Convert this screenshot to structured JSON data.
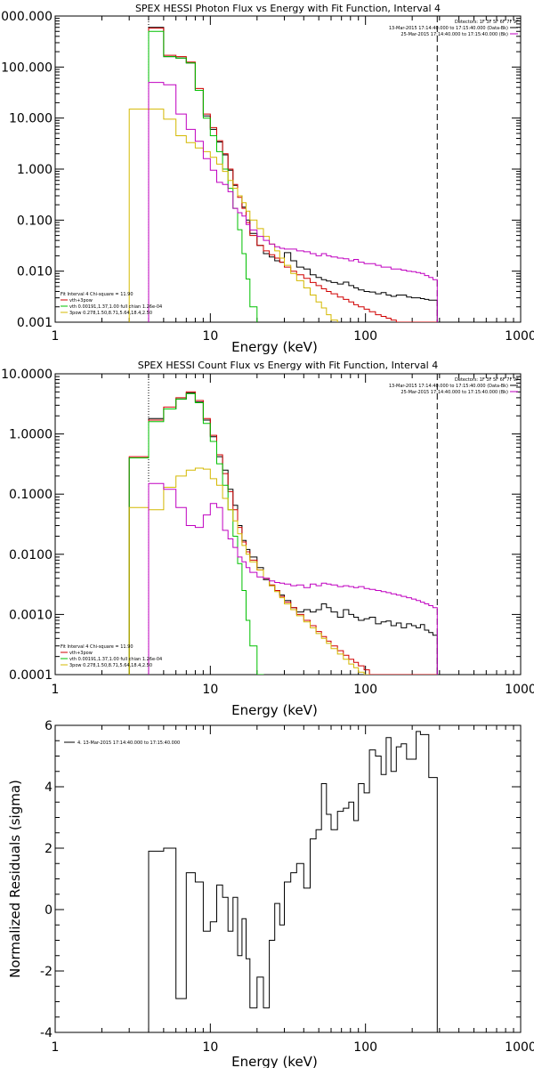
{
  "chart_data": [
    {
      "type": "line",
      "title": "SPEX HESSI Photon Flux vs Energy with Fit Function, Interval 4",
      "xlabel": "Energy (keV)",
      "ylabel": "",
      "xscale": "log",
      "yscale": "log",
      "xlim": [
        1,
        1000
      ],
      "ylim": [
        0.001,
        1000
      ],
      "xticks": [
        "1",
        "10",
        "100",
        "1000"
      ],
      "yticks": [
        "0.001",
        "0.010",
        "0.100",
        "1.000",
        "10.000",
        "100.000",
        "1000.000"
      ],
      "vline_dotted": 4,
      "vline_dashed": 290,
      "legend_right": [
        "Detectors: 1F 3F 5F 6F 7F 9F",
        "13-Mar-2015 17:14:40.000 to 17:15:40.000 (Data-Bk)",
        "25-Mar-2015 17:14:40.000 to 17:15:40.000 (Bk)"
      ],
      "legend_left": [
        "Fit Interval 4   Chi-square = 11.90",
        "vth+3pow",
        "vth 0.00191,1.37,1.00  full chian 1.26e-04",
        "3pow 0.278,1.50,8.71,5.64,18.4,2.50"
      ],
      "edges": [
        3.0,
        4.0,
        5.0,
        6.0,
        7.0,
        8.0,
        9.0,
        10.0,
        11.0,
        12.0,
        13.0,
        14.0,
        15.0,
        16.0,
        17.0,
        18.0,
        20.0,
        22.0,
        24.0,
        26.0,
        28.0,
        30.0,
        33.0,
        36.0,
        40.0,
        44.0,
        48.0,
        52.0,
        56.0,
        60.0,
        66.0,
        72.0,
        78.0,
        84.0,
        90.0,
        98.0,
        106.0,
        116.0,
        126.0,
        136.0,
        146.0,
        158.0,
        170.0,
        184.0,
        198.0,
        212.0,
        226.0,
        240.0,
        256.0,
        272.0,
        290.0
      ],
      "series": [
        {
          "name": "Data-Bk",
          "color": "#000000",
          "values": [
            null,
            600,
            160,
            150,
            120,
            35,
            11,
            6.0,
            3.4,
            1.9,
            0.95,
            0.48,
            0.3,
            0.18,
            0.1,
            0.055,
            0.032,
            0.022,
            0.019,
            0.016,
            0.015,
            0.023,
            0.016,
            0.012,
            0.011,
            0.0085,
            0.0075,
            0.0068,
            0.0064,
            0.006,
            0.0056,
            0.0061,
            0.0052,
            0.0047,
            0.0043,
            0.004,
            0.0039,
            0.0036,
            0.0038,
            0.0034,
            0.0032,
            0.0034,
            0.0034,
            0.0031,
            0.003,
            0.003,
            0.0029,
            0.0028,
            0.0027,
            0.0027
          ]
        },
        {
          "name": "vth+3pow",
          "color": "#d00000",
          "values": [
            null,
            580,
            170,
            160,
            125,
            38,
            12,
            6.5,
            3.6,
            2.0,
            1.0,
            0.5,
            0.28,
            0.17,
            0.09,
            0.05,
            0.032,
            0.025,
            0.021,
            0.018,
            0.015,
            0.012,
            0.01,
            0.0085,
            0.0072,
            0.006,
            0.0052,
            0.0045,
            0.004,
            0.0036,
            0.0031,
            0.0028,
            0.0025,
            0.0022,
            0.002,
            0.0018,
            0.0016,
            0.0014,
            0.0013,
            0.0012,
            0.0011,
            0.001,
            0.001,
            0.001,
            0.001,
            0.001,
            0.001,
            0.001,
            0.001,
            0.001
          ]
        },
        {
          "name": "vth",
          "color": "#00c000",
          "values": [
            null,
            500,
            160,
            150,
            120,
            35,
            10,
            4.5,
            2.2,
            1.0,
            0.42,
            0.17,
            0.065,
            0.022,
            0.007,
            0.002,
            0.0006,
            null,
            null,
            null,
            null,
            null,
            null,
            null,
            null,
            null,
            null,
            null,
            null,
            null,
            null,
            null,
            null,
            null,
            null,
            null,
            null,
            null,
            null,
            null,
            null,
            null,
            null,
            null,
            null,
            null,
            null,
            null,
            null,
            null
          ]
        },
        {
          "name": "3pow",
          "color": "#d4b800",
          "values": [
            15,
            15,
            9.5,
            4.5,
            3.3,
            2.6,
            2.2,
            1.7,
            1.25,
            0.9,
            0.6,
            0.42,
            0.3,
            0.22,
            0.15,
            0.1,
            0.068,
            0.048,
            0.034,
            0.025,
            0.018,
            0.013,
            0.009,
            0.0065,
            0.0047,
            0.0034,
            0.0025,
            0.0019,
            0.0014,
            0.0011,
            0.0008,
            null,
            null,
            null,
            null,
            null,
            null,
            null,
            null,
            null,
            null,
            null,
            null,
            null,
            null,
            null,
            null,
            null,
            null,
            null
          ]
        },
        {
          "name": "Bk",
          "color": "#c000c0",
          "values": [
            null,
            50,
            45,
            12,
            6.0,
            3.5,
            1.6,
            0.95,
            0.55,
            0.5,
            0.36,
            0.17,
            0.14,
            0.12,
            0.082,
            0.064,
            0.048,
            0.04,
            0.034,
            0.03,
            0.028,
            0.027,
            0.027,
            0.025,
            0.024,
            0.022,
            0.02,
            0.022,
            0.02,
            0.019,
            0.018,
            0.0175,
            0.016,
            0.017,
            0.015,
            0.014,
            0.014,
            0.013,
            0.012,
            0.012,
            0.011,
            0.011,
            0.0105,
            0.01,
            0.0098,
            0.0094,
            0.009,
            0.0082,
            0.0075,
            0.0068
          ]
        }
      ]
    },
    {
      "type": "line",
      "title": "SPEX HESSI Count Flux vs Energy with Fit Function, Interval 4",
      "xlabel": "Energy (keV)",
      "ylabel": "",
      "xscale": "log",
      "yscale": "log",
      "xlim": [
        1,
        1000
      ],
      "ylim": [
        0.0001,
        10
      ],
      "xticks": [
        "1",
        "10",
        "100",
        "1000"
      ],
      "yticks": [
        "0.0001",
        "0.0010",
        "0.0100",
        "0.1000",
        "1.0000",
        "10.0000"
      ],
      "vline_dotted": 4,
      "vline_dashed": 290,
      "legend_right": [
        "Detectors: 1F 3F 5F 6F 7F 9F",
        "13-Mar-2015 17:14:40.000 to 17:15:40.000 (Data-Bk)",
        "25-Mar-2015 17:14:40.000 to 17:15:40.000 (Bk)"
      ],
      "legend_left": [
        "Fit Interval 4   Chi-square = 11.90",
        "vth+3pow",
        "vth 0.00191,1.37,1.00  full chian 1.26e-04",
        "3pow 0.278,1.50,8.71,5.64,18.4,2.50"
      ],
      "edges": [
        3.0,
        4.0,
        5.0,
        6.0,
        7.0,
        8.0,
        9.0,
        10.0,
        11.0,
        12.0,
        13.0,
        14.0,
        15.0,
        16.0,
        17.0,
        18.0,
        20.0,
        22.0,
        24.0,
        26.0,
        28.0,
        30.0,
        33.0,
        36.0,
        40.0,
        44.0,
        48.0,
        52.0,
        56.0,
        60.0,
        66.0,
        72.0,
        78.0,
        84.0,
        90.0,
        98.0,
        106.0,
        116.0,
        126.0,
        136.0,
        146.0,
        158.0,
        170.0,
        184.0,
        198.0,
        212.0,
        226.0,
        240.0,
        256.0,
        272.0,
        290.0
      ],
      "series": [
        {
          "name": "Data-Bk",
          "color": "#000000",
          "values": [
            0.4,
            1.8,
            2.6,
            3.8,
            4.8,
            3.4,
            1.7,
            0.9,
            0.42,
            0.25,
            0.12,
            0.065,
            0.03,
            0.017,
            0.012,
            0.009,
            0.006,
            0.0038,
            0.003,
            0.0025,
            0.0021,
            0.0017,
            0.0013,
            0.0011,
            0.0012,
            0.0011,
            0.0012,
            0.0015,
            0.0013,
            0.0011,
            0.0009,
            0.0012,
            0.001,
            0.0009,
            0.0008,
            0.00085,
            0.0009,
            0.0007,
            0.00075,
            0.00078,
            0.00065,
            0.00072,
            0.0006,
            0.0007,
            0.00065,
            0.0006,
            0.00068,
            0.00055,
            0.0005,
            0.00045
          ]
        },
        {
          "name": "vth+3pow",
          "color": "#d00000",
          "values": [
            0.42,
            1.7,
            2.8,
            4.0,
            5.0,
            3.6,
            1.8,
            0.95,
            0.45,
            0.22,
            0.11,
            0.055,
            0.028,
            0.016,
            0.011,
            0.008,
            0.0055,
            0.004,
            0.0031,
            0.0025,
            0.002,
            0.0016,
            0.0013,
            0.001,
            0.0008,
            0.00065,
            0.00052,
            0.00043,
            0.00036,
            0.0003,
            0.00025,
            0.00021,
            0.00018,
            0.00016,
            0.00014,
            0.00012,
            0.0001,
            0.0001,
            0.0001,
            0.0001,
            0.0001,
            0.0001,
            0.0001,
            0.0001,
            0.0001,
            0.0001,
            0.0001,
            0.0001,
            0.0001,
            0.0001
          ]
        },
        {
          "name": "vth",
          "color": "#00c000",
          "values": [
            0.4,
            1.6,
            2.6,
            3.8,
            4.7,
            3.3,
            1.5,
            0.75,
            0.32,
            0.14,
            0.055,
            0.02,
            0.007,
            0.0025,
            0.0008,
            0.0003,
            0.0001,
            null,
            null,
            null,
            null,
            null,
            null,
            null,
            null,
            null,
            null,
            null,
            null,
            null,
            null,
            null,
            null,
            null,
            null,
            null,
            null,
            null,
            null,
            null,
            null,
            null,
            null,
            null,
            null,
            null,
            null,
            null,
            null,
            null
          ]
        },
        {
          "name": "3pow",
          "color": "#d4b800",
          "values": [
            0.06,
            0.055,
            0.13,
            0.2,
            0.25,
            0.27,
            0.26,
            0.18,
            0.14,
            0.085,
            0.055,
            0.036,
            0.022,
            0.014,
            0.01,
            0.0075,
            0.0055,
            0.004,
            0.003,
            0.0024,
            0.0019,
            0.0015,
            0.0012,
            0.00095,
            0.00075,
            0.0006,
            0.00048,
            0.0004,
            0.00033,
            0.00027,
            0.00022,
            0.00018,
            0.00015,
            0.00013,
            0.00011,
            0.0001,
            null,
            null,
            null,
            null,
            null,
            null,
            null,
            null,
            null,
            null,
            null,
            null,
            null,
            null
          ]
        },
        {
          "name": "Bk",
          "color": "#c000c0",
          "values": [
            null,
            0.15,
            0.12,
            0.06,
            0.03,
            0.028,
            0.045,
            0.07,
            0.06,
            0.025,
            0.018,
            0.013,
            0.009,
            0.0075,
            0.006,
            0.005,
            0.0042,
            0.004,
            0.0036,
            0.0034,
            0.0033,
            0.0032,
            0.003,
            0.0031,
            0.0028,
            0.0032,
            0.003,
            0.0033,
            0.0032,
            0.0031,
            0.0029,
            0.003,
            0.0029,
            0.0028,
            0.0029,
            0.0027,
            0.0026,
            0.0025,
            0.0024,
            0.0023,
            0.0022,
            0.0021,
            0.002,
            0.0019,
            0.0018,
            0.0017,
            0.0016,
            0.0015,
            0.0014,
            0.0013
          ]
        }
      ]
    },
    {
      "type": "line",
      "title": "",
      "xlabel": "Energy (keV)",
      "ylabel": "Normalized Residuals (sigma)",
      "xscale": "log",
      "yscale": "linear",
      "xlim": [
        1,
        1000
      ],
      "ylim": [
        -4,
        6
      ],
      "xticks": [
        "1",
        "10",
        "100",
        "1000"
      ],
      "yticks": [
        "-4",
        "-2",
        "0",
        "2",
        "4",
        "6"
      ],
      "legend": [
        "4. 13-Mar-2015 17:14:40.000 to 17:15:40.000"
      ],
      "edges": [
        4.0,
        5.0,
        6.0,
        7.0,
        8.0,
        9.0,
        10.0,
        11.0,
        12.0,
        13.0,
        14.0,
        15.0,
        16.0,
        17.0,
        18.0,
        20.0,
        22.0,
        24.0,
        26.0,
        28.0,
        30.0,
        33.0,
        36.0,
        40.0,
        44.0,
        48.0,
        52.0,
        56.0,
        60.0,
        66.0,
        72.0,
        78.0,
        84.0,
        90.0,
        98.0,
        106.0,
        116.0,
        126.0,
        136.0,
        146.0,
        158.0,
        170.0,
        184.0,
        198.0,
        212.0,
        226.0,
        240.0,
        256.0,
        272.0,
        290.0
      ],
      "series": [
        {
          "name": "4. 13-Mar-2015 17:14:40.000 to 17:15:40.000",
          "color": "#000000",
          "values": [
            1.9,
            2.0,
            -2.9,
            1.2,
            0.9,
            -0.7,
            -0.4,
            0.8,
            0.4,
            -0.7,
            0.4,
            -1.5,
            -0.3,
            -1.6,
            -3.2,
            -2.2,
            -3.2,
            -1.0,
            0.2,
            -0.5,
            0.9,
            1.2,
            1.5,
            0.7,
            2.3,
            2.6,
            4.1,
            3.1,
            2.6,
            3.2,
            3.3,
            3.5,
            2.9,
            4.1,
            3.8,
            5.2,
            5.0,
            4.4,
            5.6,
            4.5,
            5.3,
            5.4,
            4.9,
            4.9,
            5.8,
            5.7,
            5.7,
            4.3,
            4.3
          ]
        }
      ]
    }
  ]
}
